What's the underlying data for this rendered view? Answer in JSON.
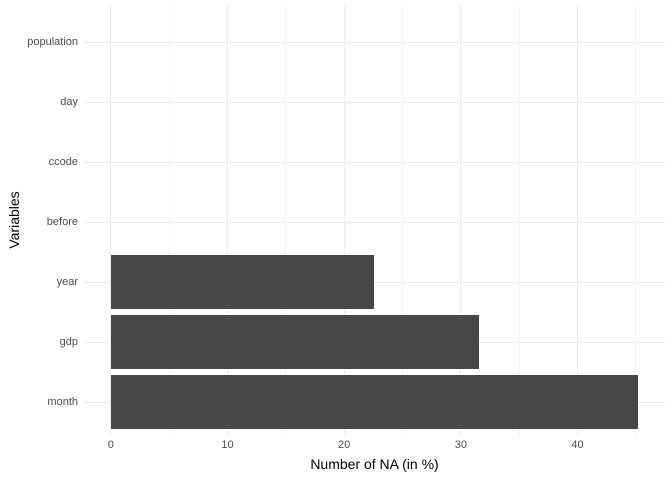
{
  "chart_data": {
    "type": "bar",
    "orientation": "horizontal",
    "title": "",
    "xlabel": "Number of NA (in %)",
    "ylabel": "Variables",
    "categories": [
      "population",
      "day",
      "ccode",
      "before",
      "year",
      "gdp",
      "month"
    ],
    "values": [
      0,
      0,
      0,
      0,
      22.6,
      31.6,
      45.2
    ],
    "x_major_ticks": [
      0,
      10,
      20,
      30,
      40
    ],
    "x_minor_ticks": [
      5,
      15,
      25,
      35,
      45
    ],
    "xlim": [
      -2.3,
      47.5
    ],
    "grid": "major-and-minor",
    "legend": "none",
    "colors": {
      "bar": "#474747",
      "grid_major": "#ebebeb",
      "grid_minor": "#f3f3f3",
      "tick_label": "#4d4d4d",
      "axis_title": "#000000",
      "background": "#ffffff"
    }
  }
}
